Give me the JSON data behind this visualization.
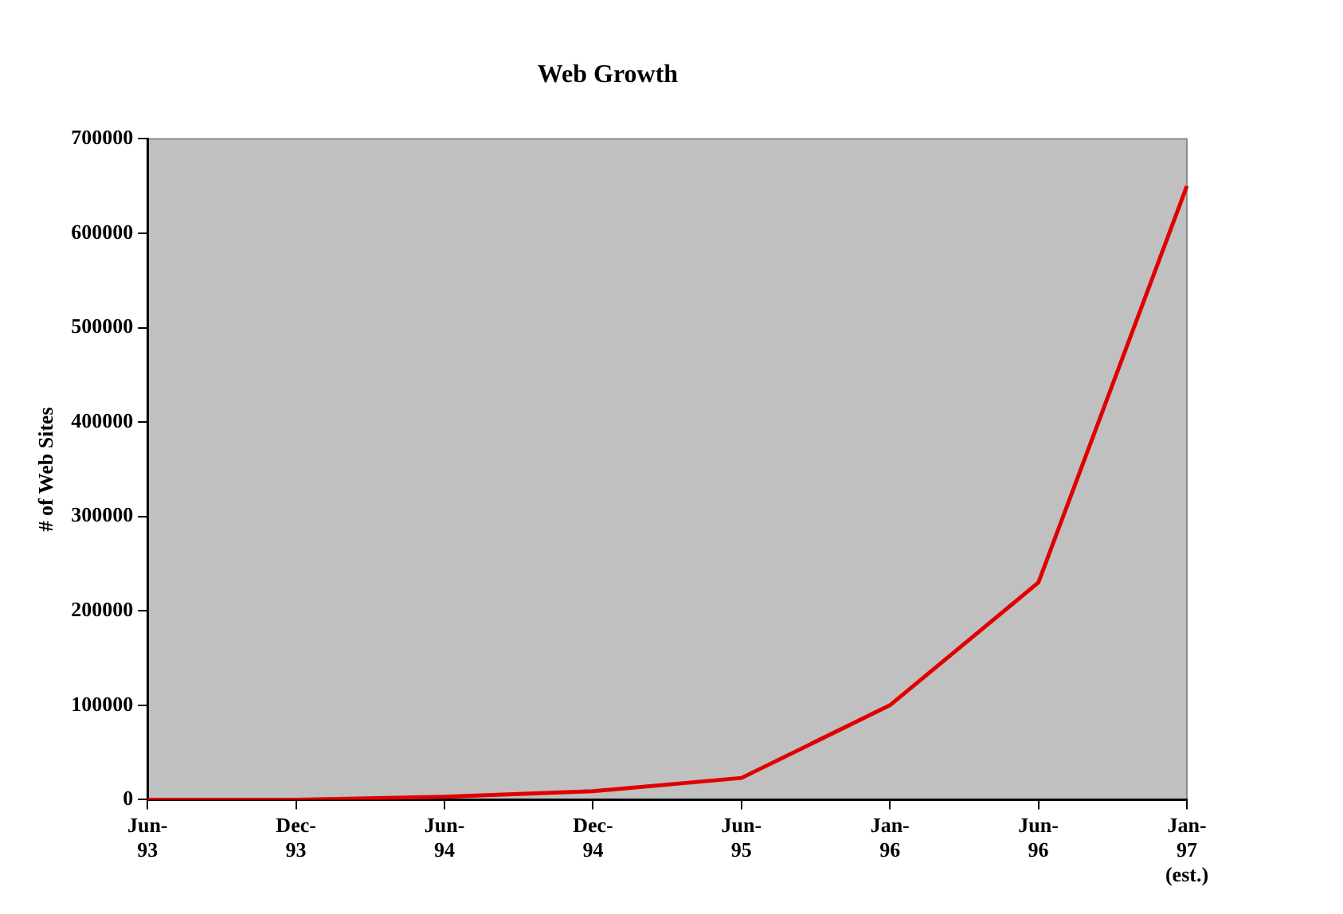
{
  "chart_data": {
    "type": "line",
    "title": "Web Growth",
    "ylabel": "# of Web Sites",
    "categories": [
      "Jun-93",
      "Dec-93",
      "Jun-94",
      "Dec-94",
      "Jun-95",
      "Jan-96",
      "Jun-96",
      "Jan-97 (est.)"
    ],
    "series": [
      {
        "color": "#e00000",
        "values": [
          0,
          0,
          3000,
          9000,
          23000,
          100000,
          230000,
          650000
        ]
      }
    ],
    "ylim": [
      0,
      700000
    ],
    "yticks": [
      0,
      100000,
      200000,
      300000,
      400000,
      500000,
      600000,
      700000
    ],
    "grid": false,
    "legend": false,
    "marker": "none",
    "line_style": "solid"
  }
}
